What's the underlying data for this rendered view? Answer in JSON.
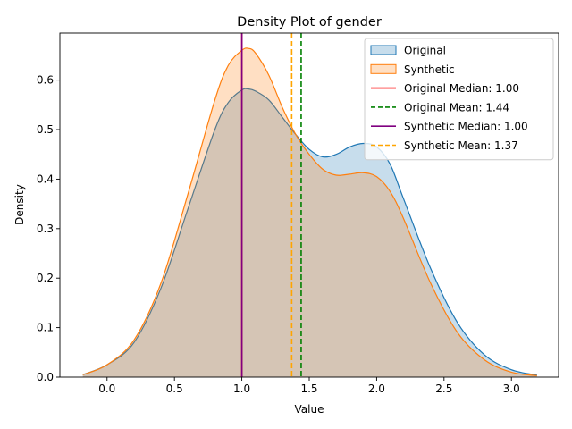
{
  "chart_data": {
    "type": "area",
    "title": "Density Plot of gender",
    "xlabel": "Value",
    "ylabel": "Density",
    "xlim": [
      -0.35,
      3.35
    ],
    "ylim": [
      0,
      0.695
    ],
    "xticks": [
      0.0,
      0.5,
      1.0,
      1.5,
      2.0,
      2.5,
      3.0
    ],
    "xtick_labels": [
      "0.0",
      "0.5",
      "1.0",
      "1.5",
      "2.0",
      "2.5",
      "3.0"
    ],
    "yticks": [
      0.0,
      0.1,
      0.2,
      0.3,
      0.4,
      0.5,
      0.6
    ],
    "ytick_labels": [
      "0.0",
      "0.1",
      "0.2",
      "0.3",
      "0.4",
      "0.5",
      "0.6"
    ],
    "grid": false,
    "legend_position": "top-right",
    "series": [
      {
        "name": "Original",
        "color": "#1f77b4",
        "fill": "#1f77b4",
        "x": [
          -0.18,
          0.0,
          0.2,
          0.4,
          0.6,
          0.8,
          0.9,
          1.0,
          1.05,
          1.1,
          1.2,
          1.3,
          1.4,
          1.5,
          1.6,
          1.7,
          1.8,
          1.9,
          2.0,
          2.1,
          2.2,
          2.4,
          2.6,
          2.8,
          3.0,
          3.19
        ],
        "y": [
          0.005,
          0.025,
          0.07,
          0.18,
          0.34,
          0.5,
          0.555,
          0.58,
          0.582,
          0.578,
          0.56,
          0.525,
          0.49,
          0.46,
          0.445,
          0.45,
          0.465,
          0.472,
          0.465,
          0.43,
          0.36,
          0.22,
          0.11,
          0.045,
          0.015,
          0.004
        ]
      },
      {
        "name": "Synthetic",
        "color": "#ff7f0e",
        "fill": "#ff7f0e",
        "x": [
          -0.18,
          0.0,
          0.2,
          0.4,
          0.6,
          0.8,
          0.9,
          1.0,
          1.05,
          1.1,
          1.2,
          1.3,
          1.4,
          1.5,
          1.6,
          1.7,
          1.8,
          1.9,
          2.0,
          2.1,
          2.2,
          2.4,
          2.6,
          2.8,
          3.0,
          3.19
        ],
        "y": [
          0.005,
          0.025,
          0.075,
          0.19,
          0.37,
          0.56,
          0.63,
          0.66,
          0.664,
          0.655,
          0.61,
          0.545,
          0.49,
          0.45,
          0.42,
          0.408,
          0.41,
          0.413,
          0.405,
          0.375,
          0.32,
          0.19,
          0.09,
          0.035,
          0.01,
          0.003
        ]
      }
    ],
    "reference_lines": [
      {
        "name": "Original Median: 1.00",
        "x": 1.0,
        "color": "#ff0000",
        "style": "solid"
      },
      {
        "name": "Original Mean: 1.44",
        "x": 1.44,
        "color": "#008000",
        "style": "dashed"
      },
      {
        "name": "Synthetic Median: 1.00",
        "x": 1.0,
        "color": "#800080",
        "style": "solid"
      },
      {
        "name": "Synthetic Mean: 1.37",
        "x": 1.37,
        "color": "#ffa500",
        "style": "dashed"
      }
    ]
  }
}
